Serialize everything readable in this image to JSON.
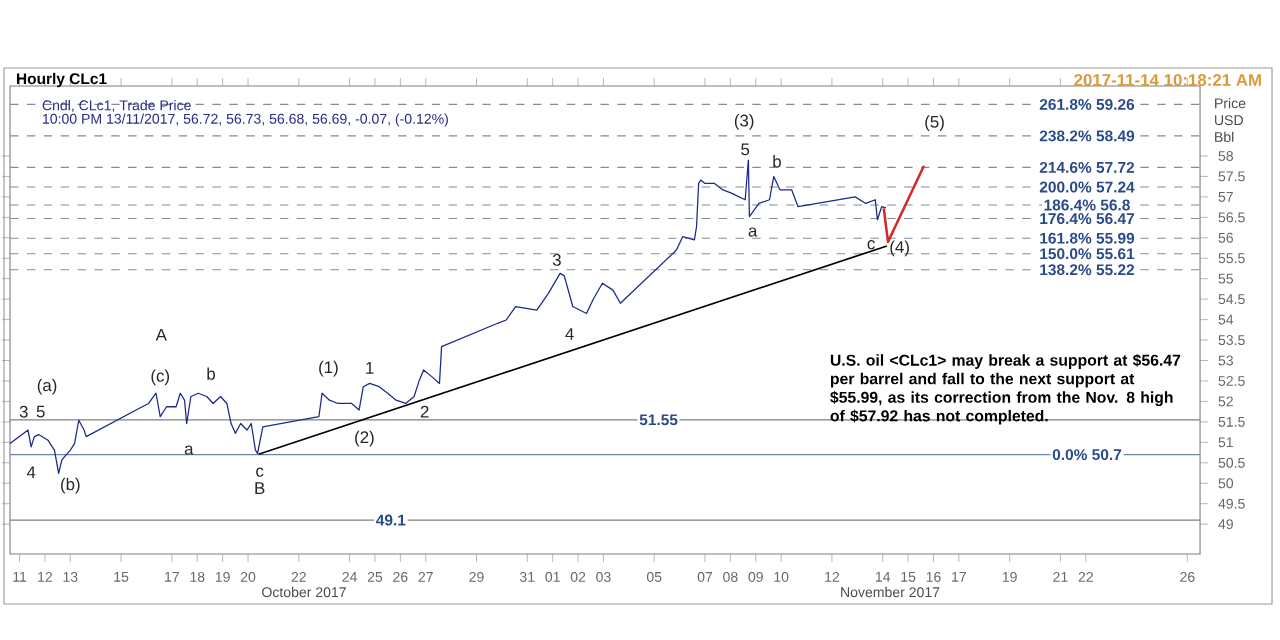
{
  "chart_data": {
    "type": "line",
    "title": "Hourly CLc1",
    "subtitle": "Cndl, CLc1, Trade Price",
    "ylabel": "Price USD Bbl",
    "annotations": [
      "U.S. oil <CLc1> may break a support at $56.47 per barrel and fall to the next support at $55.99, as its correction from the Nov. 8 high of $57.92 has not completed.",
      "10:00 PM 13/11/2017, 56.72, 56.73, 56.68, 56.69, -0.07, (-0.12%)",
      "2017-11-14 10:18:21 AM",
      "October 2017",
      "November 2017",
      "3",
      "5",
      "4",
      "(a)",
      "(b)",
      "(c)",
      "A",
      "a",
      "b",
      "c",
      "B",
      "(1)",
      "1",
      "(2)",
      "2",
      "3",
      "4",
      "(3)",
      "5",
      "a",
      "b",
      "c",
      "(4)",
      "(5)"
    ],
    "xlim": [
      "2017-10-10T15:00",
      "2017-11-26T12:00"
    ],
    "ylim": [
      48.27,
      59.71
    ],
    "xticks": [
      {
        "value": "2017-10-11",
        "label": "11"
      },
      {
        "value": "2017-10-12",
        "label": "12"
      },
      {
        "value": "2017-10-13",
        "label": "13"
      },
      {
        "value": "2017-10-15",
        "label": "15"
      },
      {
        "value": "2017-10-17",
        "label": "17"
      },
      {
        "value": "2017-10-18",
        "label": "18"
      },
      {
        "value": "2017-10-19",
        "label": "19"
      },
      {
        "value": "2017-10-20",
        "label": "20"
      },
      {
        "value": "2017-10-22",
        "label": "22"
      },
      {
        "value": "2017-10-24",
        "label": "24"
      },
      {
        "value": "2017-10-25",
        "label": "25"
      },
      {
        "value": "2017-10-26",
        "label": "26"
      },
      {
        "value": "2017-10-27",
        "label": "27"
      },
      {
        "value": "2017-10-29",
        "label": "29"
      },
      {
        "value": "2017-10-31",
        "label": "31"
      },
      {
        "value": "2017-11-01",
        "label": "01"
      },
      {
        "value": "2017-11-02",
        "label": "02"
      },
      {
        "value": "2017-11-03",
        "label": "03"
      },
      {
        "value": "2017-11-05",
        "label": "05"
      },
      {
        "value": "2017-11-07",
        "label": "07"
      },
      {
        "value": "2017-11-08",
        "label": "08"
      },
      {
        "value": "2017-11-09",
        "label": "09"
      },
      {
        "value": "2017-11-10",
        "label": "10"
      },
      {
        "value": "2017-11-12",
        "label": "12"
      },
      {
        "value": "2017-11-14",
        "label": "14"
      },
      {
        "value": "2017-11-15",
        "label": "15"
      },
      {
        "value": "2017-11-16",
        "label": "16"
      },
      {
        "value": "2017-11-17",
        "label": "17"
      },
      {
        "value": "2017-11-19",
        "label": "19"
      },
      {
        "value": "2017-11-21",
        "label": "21"
      },
      {
        "value": "2017-11-22",
        "label": "22"
      },
      {
        "value": "2017-11-26",
        "label": "26"
      }
    ],
    "yticks": [
      49,
      49.5,
      50,
      50.5,
      51,
      51.5,
      52,
      52.5,
      53,
      53.5,
      54,
      54.5,
      55,
      55.5,
      56,
      56.5,
      57,
      57.5,
      58
    ],
    "grid": false,
    "marker": "none",
    "ref_lines": [
      {
        "axis": "y",
        "value": 59.26,
        "label": "261.8% 59.26",
        "color": "#7f8c9a",
        "line_style": "dashed"
      },
      {
        "axis": "y",
        "value": 58.49,
        "label": "238.2% 58.49",
        "color": "#7f8c9a",
        "line_style": "dashed"
      },
      {
        "axis": "y",
        "value": 57.72,
        "label": "214.6% 57.72",
        "color": "#7f8c9a",
        "line_style": "dashed"
      },
      {
        "axis": "y",
        "value": 57.24,
        "label": "200.0% 57.24",
        "color": "#7f8c9a",
        "line_style": "dashed"
      },
      {
        "axis": "y",
        "value": 56.8,
        "label": "186.4% 56.8",
        "color": "#7f8c9a",
        "line_style": "dashed"
      },
      {
        "axis": "y",
        "value": 56.47,
        "label": "176.4% 56.47",
        "color": "#7f8c9a",
        "line_style": "dashed"
      },
      {
        "axis": "y",
        "value": 55.99,
        "label": "161.8% 55.99",
        "color": "#7f8c9a",
        "line_style": "dashed"
      },
      {
        "axis": "y",
        "value": 55.61,
        "label": "150.0% 55.61",
        "color": "#7f8c9a",
        "line_style": "dashed"
      },
      {
        "axis": "y",
        "value": 55.22,
        "label": "138.2% 55.22",
        "color": "#7f8c9a",
        "line_style": "dashed"
      },
      {
        "axis": "y",
        "value": 50.7,
        "label": "0.0% 50.7",
        "color": "#6a86a8",
        "line_style": "solid"
      },
      {
        "axis": "y",
        "value": 51.55,
        "label": "51.55",
        "color": "#808080",
        "line_style": "solid"
      },
      {
        "axis": "y",
        "value": 49.1,
        "label": "49.1",
        "color": "#808080",
        "line_style": "solid"
      }
    ],
    "series": [
      {
        "color": "#1c2a8c",
        "x": [
          "2017-10-10T15:00",
          "2017-10-10T21:00",
          "2017-10-11T04:00",
          "2017-10-11T08:00",
          "2017-10-11T11:00",
          "2017-10-11T14:00",
          "2017-10-11T18:00",
          "2017-10-12T03:00",
          "2017-10-12T09:00",
          "2017-10-12T13:00",
          "2017-10-12T16:00",
          "2017-10-13T00:00",
          "2017-10-13T04:00",
          "2017-10-13T08:00",
          "2017-10-13T13:00",
          "2017-10-13T15:00",
          "2017-10-15T20:00",
          "2017-10-16T02:00",
          "2017-10-16T09:00",
          "2017-10-16T13:00",
          "2017-10-16T19:00",
          "2017-10-17T04:00",
          "2017-10-17T08:00",
          "2017-10-17T12:00",
          "2017-10-17T14:00",
          "2017-10-17T18:00",
          "2017-10-18T01:00",
          "2017-10-18T09:00",
          "2017-10-18T15:00",
          "2017-10-18T22:00",
          "2017-10-19T04:00",
          "2017-10-19T08:00",
          "2017-10-19T12:00",
          "2017-10-19T17:00",
          "2017-10-19T23:00",
          "2017-10-20T03:00",
          "2017-10-20T07:00",
          "2017-10-20T09:00",
          "2017-10-20T14:00",
          "2017-10-22T19:00",
          "2017-10-22T22:00",
          "2017-10-23T05:00",
          "2017-10-23T13:00",
          "2017-10-24T02:00",
          "2017-10-24T09:00",
          "2017-10-24T13:00",
          "2017-10-24T19:00",
          "2017-10-25T04:00",
          "2017-10-25T12:00",
          "2017-10-25T20:00",
          "2017-10-26T05:00",
          "2017-10-26T13:00",
          "2017-10-26T18:00",
          "2017-10-26T22:00",
          "2017-10-27T06:00",
          "2017-10-27T13:00",
          "2017-10-27T15:00",
          "2017-10-29T20:00",
          "2017-10-30T04:00",
          "2017-10-30T13:00",
          "2017-10-31T09:00",
          "2017-10-31T20:00",
          "2017-11-01T07:00",
          "2017-11-01T11:00",
          "2017-11-01T19:00",
          "2017-11-02T08:00",
          "2017-11-02T14:00",
          "2017-11-02T23:00",
          "2017-11-03T09:00",
          "2017-11-03T16:00",
          "2017-11-05T21:00",
          "2017-11-06T03:00",
          "2017-11-06T14:00",
          "2017-11-06T16:00",
          "2017-11-06T18:00",
          "2017-11-06T20:00",
          "2017-11-07T00:00",
          "2017-11-07T09:00",
          "2017-11-07T17:00",
          "2017-11-08T01:00",
          "2017-11-08T14:00",
          "2017-11-08T17:00",
          "2017-11-08T18:00",
          "2017-11-09T03:00",
          "2017-11-09T13:00",
          "2017-11-09T17:00",
          "2017-11-09T23:00",
          "2017-11-10T10:00",
          "2017-11-10T16:00",
          "2017-11-12T22:00",
          "2017-11-13T08:00",
          "2017-11-13T17:00",
          "2017-11-13T19:00",
          "2017-11-13T23:00",
          "2017-11-14T03:00"
        ],
        "values": [
          50.97,
          51.09,
          51.22,
          51.3,
          50.89,
          51.14,
          51.19,
          51.05,
          50.81,
          50.24,
          50.57,
          50.81,
          50.97,
          51.54,
          51.3,
          51.14,
          51.87,
          51.95,
          52.2,
          51.63,
          51.87,
          51.87,
          52.2,
          52.03,
          51.46,
          52.12,
          52.2,
          52.12,
          51.95,
          52.12,
          51.95,
          51.46,
          51.22,
          51.46,
          51.3,
          51.46,
          50.81,
          50.73,
          51.38,
          51.63,
          52.2,
          52.03,
          51.95,
          51.95,
          51.79,
          52.36,
          52.44,
          52.36,
          52.2,
          52.03,
          51.95,
          52.12,
          52.52,
          52.77,
          52.6,
          52.44,
          53.34,
          53.91,
          53.99,
          54.32,
          54.23,
          54.64,
          55.13,
          55.07,
          54.32,
          54.15,
          54.48,
          54.89,
          54.72,
          54.4,
          55.7,
          56.03,
          55.95,
          56.27,
          57.33,
          57.41,
          57.33,
          57.33,
          57.17,
          57.09,
          56.93,
          57.9,
          56.52,
          56.84,
          56.93,
          57.5,
          57.17,
          57.17,
          56.76,
          57.0,
          56.84,
          56.93,
          56.44,
          56.76,
          56.73
        ]
      },
      {
        "color": "#000000",
        "x": [
          "2017-10-20T10:00",
          "2017-11-14T04:00"
        ],
        "values": [
          50.71,
          55.8
        ]
      },
      {
        "color": "#d42a2a",
        "x": [
          "2017-11-14T01:00",
          "2017-11-14T05:00",
          "2017-11-15T15:00"
        ],
        "values": [
          56.72,
          55.9,
          57.76
        ]
      }
    ]
  }
}
